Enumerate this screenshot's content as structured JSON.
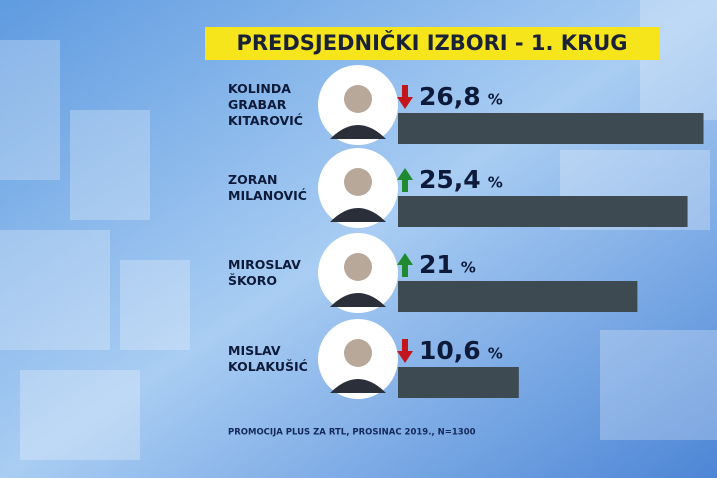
{
  "chart_data": {
    "type": "bar",
    "title": "PREDSJEDNIČKI IZBORI - 1. KRUG",
    "categories": [
      [
        "KOLINDA",
        "GRABAR",
        "KITAROVIĆ"
      ],
      [
        "ZORAN",
        "MILANOVIĆ"
      ],
      [
        "MIROSLAV",
        "ŠKORO"
      ],
      [
        "MISLAV",
        "KOLAKUŠIĆ"
      ]
    ],
    "values": [
      26.8,
      25.4,
      21,
      10.6
    ],
    "value_labels": [
      "26,8",
      "25,4",
      "21",
      "10,6"
    ],
    "unit": "%",
    "trend": [
      "down",
      "up",
      "up",
      "down"
    ],
    "color": "#3d4a52",
    "trend_colors": {
      "up": "#1f8a2f",
      "down": "#c3161c"
    },
    "source": "PROMOCIJA PLUS ZA RTL, PROSINAC 2019., N=1300"
  }
}
